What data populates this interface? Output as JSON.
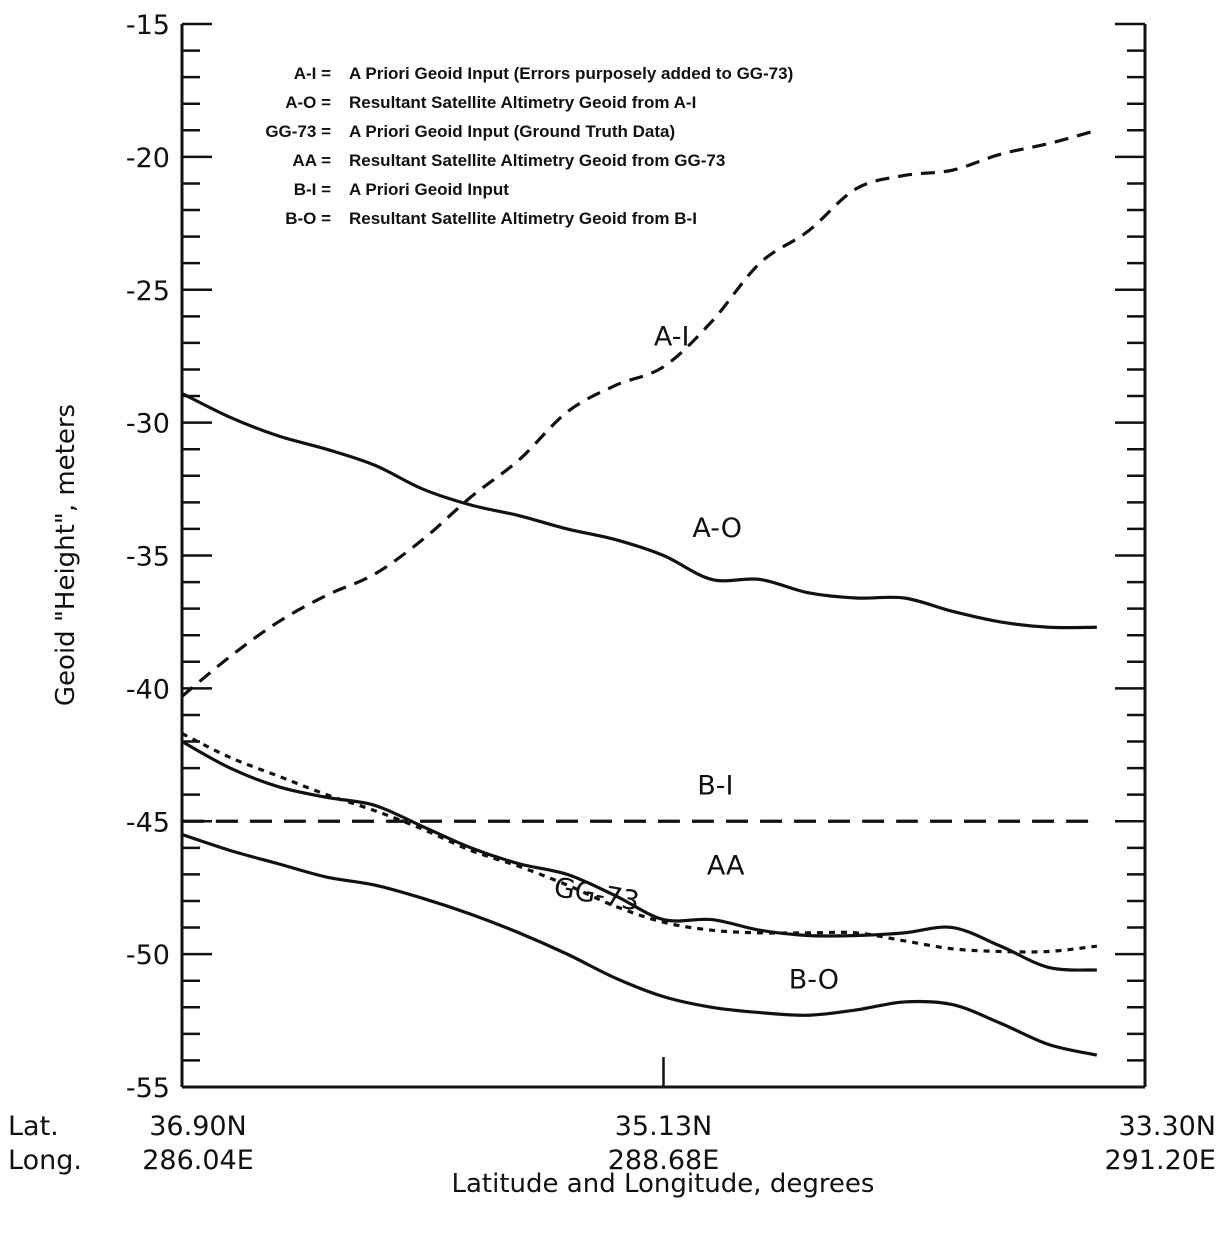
{
  "chart_data": {
    "type": "line",
    "ylabel": "Geoid \"Height\", meters",
    "xlabel": "Latitude and Longitude, degrees",
    "ylim": [
      -55,
      -15
    ],
    "yticks": [
      -15,
      -20,
      -25,
      -30,
      -35,
      -40,
      -45,
      -50,
      -55
    ],
    "xlim": [
      0,
      1
    ],
    "grid": false,
    "legend_position": "top-left inside",
    "x_row_labels": {
      "lat": "Lat.",
      "long": "Long."
    },
    "x_ticks": [
      {
        "pos": 0.0,
        "lat": "36.90N",
        "long": "286.04E"
      },
      {
        "pos": 0.5,
        "lat": "35.13N",
        "long": "288.68E"
      },
      {
        "pos": 1.0,
        "lat": "33.30N",
        "long": "291.20E"
      }
    ],
    "legend": [
      {
        "key": "A-I =",
        "text": "A Priori Geoid Input (Errors purposely added to GG-73)"
      },
      {
        "key": "A-O =",
        "text": "Resultant Satellite Altimetry Geoid from A-I"
      },
      {
        "key": "GG-73 =",
        "text": "A Priori Geoid Input (Ground Truth Data)"
      },
      {
        "key": "AA =",
        "text": "Resultant Satellite Altimetry Geoid from GG-73"
      },
      {
        "key": "B-I =",
        "text": "A Priori Geoid Input"
      },
      {
        "key": "B-O =",
        "text": "Resultant Satellite Altimetry Geoid from B-I"
      }
    ],
    "series": [
      {
        "name": "A-I",
        "style": "dashed",
        "points": [
          [
            0.0,
            -40.3
          ],
          [
            0.05,
            -38.8
          ],
          [
            0.1,
            -37.5
          ],
          [
            0.15,
            -36.5
          ],
          [
            0.2,
            -35.7
          ],
          [
            0.25,
            -34.4
          ],
          [
            0.3,
            -32.8
          ],
          [
            0.35,
            -31.4
          ],
          [
            0.4,
            -29.6
          ],
          [
            0.45,
            -28.6
          ],
          [
            0.5,
            -27.9
          ],
          [
            0.55,
            -26.2
          ],
          [
            0.6,
            -24.0
          ],
          [
            0.65,
            -22.8
          ],
          [
            0.7,
            -21.2
          ],
          [
            0.75,
            -20.7
          ],
          [
            0.8,
            -20.5
          ],
          [
            0.85,
            -19.9
          ],
          [
            0.9,
            -19.5
          ],
          [
            0.95,
            -19.0
          ]
        ]
      },
      {
        "name": "A-O",
        "style": "solid",
        "points": [
          [
            0.0,
            -28.9
          ],
          [
            0.05,
            -29.8
          ],
          [
            0.1,
            -30.5
          ],
          [
            0.15,
            -31.0
          ],
          [
            0.2,
            -31.6
          ],
          [
            0.25,
            -32.5
          ],
          [
            0.3,
            -33.1
          ],
          [
            0.35,
            -33.5
          ],
          [
            0.4,
            -34.0
          ],
          [
            0.45,
            -34.4
          ],
          [
            0.5,
            -35.0
          ],
          [
            0.55,
            -35.9
          ],
          [
            0.6,
            -35.9
          ],
          [
            0.65,
            -36.4
          ],
          [
            0.7,
            -36.6
          ],
          [
            0.75,
            -36.6
          ],
          [
            0.8,
            -37.1
          ],
          [
            0.85,
            -37.5
          ],
          [
            0.9,
            -37.7
          ],
          [
            0.95,
            -37.7
          ]
        ]
      },
      {
        "name": "GG-73",
        "style": "dotted",
        "points": [
          [
            0.0,
            -41.7
          ],
          [
            0.05,
            -42.6
          ],
          [
            0.1,
            -43.3
          ],
          [
            0.15,
            -44.0
          ],
          [
            0.2,
            -44.6
          ],
          [
            0.25,
            -45.3
          ],
          [
            0.3,
            -46.1
          ],
          [
            0.35,
            -46.7
          ],
          [
            0.4,
            -47.4
          ],
          [
            0.45,
            -48.2
          ],
          [
            0.5,
            -48.8
          ],
          [
            0.55,
            -49.1
          ],
          [
            0.6,
            -49.2
          ],
          [
            0.65,
            -49.2
          ],
          [
            0.7,
            -49.2
          ],
          [
            0.75,
            -49.5
          ],
          [
            0.8,
            -49.8
          ],
          [
            0.85,
            -49.9
          ],
          [
            0.9,
            -49.9
          ],
          [
            0.95,
            -49.7
          ]
        ]
      },
      {
        "name": "AA",
        "style": "solid",
        "points": [
          [
            0.0,
            -42.0
          ],
          [
            0.05,
            -43.0
          ],
          [
            0.1,
            -43.7
          ],
          [
            0.15,
            -44.1
          ],
          [
            0.2,
            -44.4
          ],
          [
            0.25,
            -45.2
          ],
          [
            0.3,
            -46.0
          ],
          [
            0.35,
            -46.6
          ],
          [
            0.4,
            -47.0
          ],
          [
            0.45,
            -47.8
          ],
          [
            0.5,
            -48.7
          ],
          [
            0.55,
            -48.7
          ],
          [
            0.6,
            -49.1
          ],
          [
            0.65,
            -49.3
          ],
          [
            0.7,
            -49.3
          ],
          [
            0.75,
            -49.2
          ],
          [
            0.8,
            -49.0
          ],
          [
            0.85,
            -49.7
          ],
          [
            0.9,
            -50.5
          ],
          [
            0.95,
            -50.6
          ]
        ]
      },
      {
        "name": "B-I",
        "style": "long-dashed",
        "points": [
          [
            0.0,
            -45.0
          ],
          [
            0.25,
            -45.0
          ],
          [
            0.5,
            -45.0
          ],
          [
            0.75,
            -45.0
          ],
          [
            0.95,
            -45.0
          ]
        ]
      },
      {
        "name": "B-O",
        "style": "solid",
        "points": [
          [
            0.0,
            -45.5
          ],
          [
            0.05,
            -46.1
          ],
          [
            0.1,
            -46.6
          ],
          [
            0.15,
            -47.1
          ],
          [
            0.2,
            -47.4
          ],
          [
            0.25,
            -47.9
          ],
          [
            0.3,
            -48.5
          ],
          [
            0.35,
            -49.2
          ],
          [
            0.4,
            -50.0
          ],
          [
            0.45,
            -50.9
          ],
          [
            0.5,
            -51.6
          ],
          [
            0.55,
            -52.0
          ],
          [
            0.6,
            -52.2
          ],
          [
            0.65,
            -52.3
          ],
          [
            0.7,
            -52.1
          ],
          [
            0.75,
            -51.8
          ],
          [
            0.8,
            -51.9
          ],
          [
            0.85,
            -52.6
          ],
          [
            0.9,
            -53.4
          ],
          [
            0.95,
            -53.8
          ]
        ]
      }
    ]
  }
}
